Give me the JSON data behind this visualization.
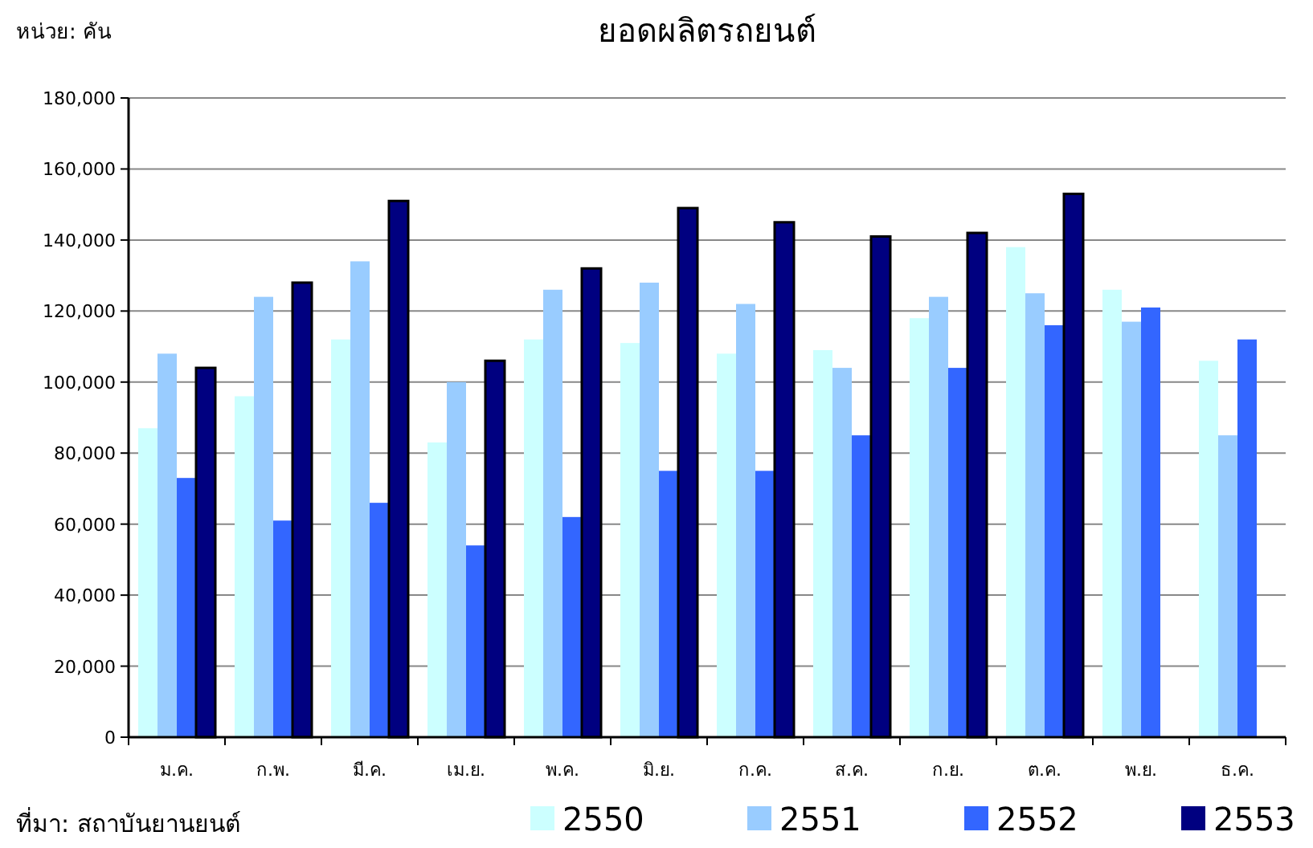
{
  "chart_data": {
    "type": "bar",
    "title": "ยอดผลิตรถยนต์",
    "ylabel": "หน่วย: คัน",
    "annotations": [
      "ที่มา:  สถาบันยานยนต์"
    ],
    "categories": [
      "ม.ค.",
      "ก.พ.",
      "มี.ค.",
      "เม.ย.",
      "พ.ค.",
      "มิ.ย.",
      "ก.ค.",
      "ส.ค.",
      "ก.ย.",
      "ต.ค.",
      "พ.ย.",
      "ธ.ค."
    ],
    "series": [
      {
        "name": "2550",
        "color": "#ccffff",
        "values": [
          87000,
          96000,
          112000,
          83000,
          112000,
          111000,
          108000,
          109000,
          118000,
          138000,
          126000,
          106000
        ]
      },
      {
        "name": "2551",
        "color": "#99ccff",
        "values": [
          108000,
          124000,
          134000,
          100000,
          126000,
          128000,
          122000,
          104000,
          124000,
          125000,
          117000,
          85000
        ]
      },
      {
        "name": "2552",
        "color": "#3366ff",
        "values": [
          73000,
          61000,
          66000,
          54000,
          62000,
          75000,
          75000,
          85000,
          104000,
          116000,
          121000,
          112000
        ]
      },
      {
        "name": "2553",
        "color": "#000080",
        "values": [
          104000,
          128000,
          151000,
          106000,
          132000,
          149000,
          145000,
          141000,
          142000,
          153000,
          null,
          null
        ]
      }
    ],
    "ylim": [
      0,
      180000
    ],
    "yticks": [
      0,
      {
        "value": 20000,
        "label": "20,000"
      },
      {
        "value": 40000,
        "label": "40,000"
      },
      {
        "value": 60000,
        "label": "60,000"
      },
      {
        "value": 80000,
        "label": "80,000"
      },
      {
        "value": 100000,
        "label": "100,000"
      },
      {
        "value": 120000,
        "label": "120,000"
      },
      {
        "value": 140000,
        "label": "140,000"
      },
      {
        "value": 160000,
        "label": "160,000"
      },
      {
        "value": 180000,
        "label": "180,000"
      }
    ],
    "grid": "y",
    "legend": "bottom"
  }
}
